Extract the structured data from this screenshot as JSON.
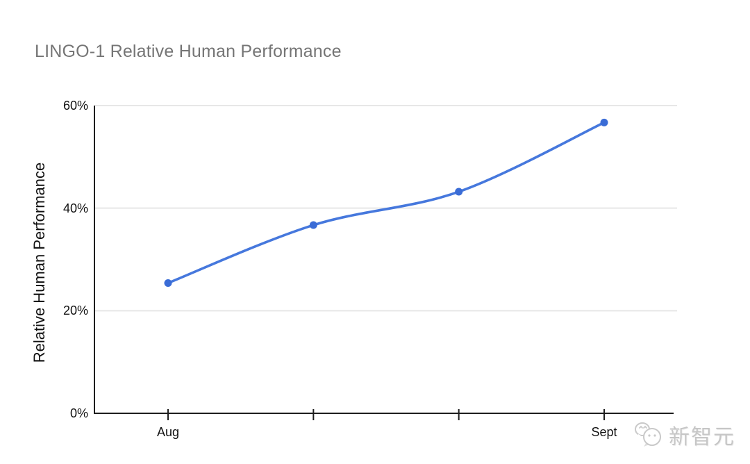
{
  "chart_data": {
    "type": "line",
    "title": "LINGO-1 Relative Human Performance",
    "xlabel": "",
    "ylabel": "Relative Human Performance",
    "x_tick_labels": [
      "Aug",
      "",
      "",
      "Sept"
    ],
    "values": [
      25.4,
      36.7,
      43.2,
      56.7
    ],
    "series": [
      {
        "name": "Relative Human Performance",
        "values": [
          25.4,
          36.7,
          43.2,
          56.7
        ]
      }
    ],
    "y_ticks": [
      0,
      20,
      40,
      60
    ],
    "y_tick_labels": [
      "0%",
      "20%",
      "40%",
      "60%"
    ],
    "ylim": [
      0,
      60
    ],
    "grid": true,
    "smooth": true,
    "legend_position": "none"
  },
  "watermark": {
    "text": "新智元",
    "icon": "wechat-bubbles-icon"
  },
  "colors": {
    "line": "#4678dd",
    "point": "#3a6cd6",
    "grid": "#e7e7e7",
    "axis": "#1d1d1d",
    "title_text": "#757575",
    "tick_text": "#111111",
    "watermark": "#c6c6c6",
    "background": "#ffffff"
  }
}
